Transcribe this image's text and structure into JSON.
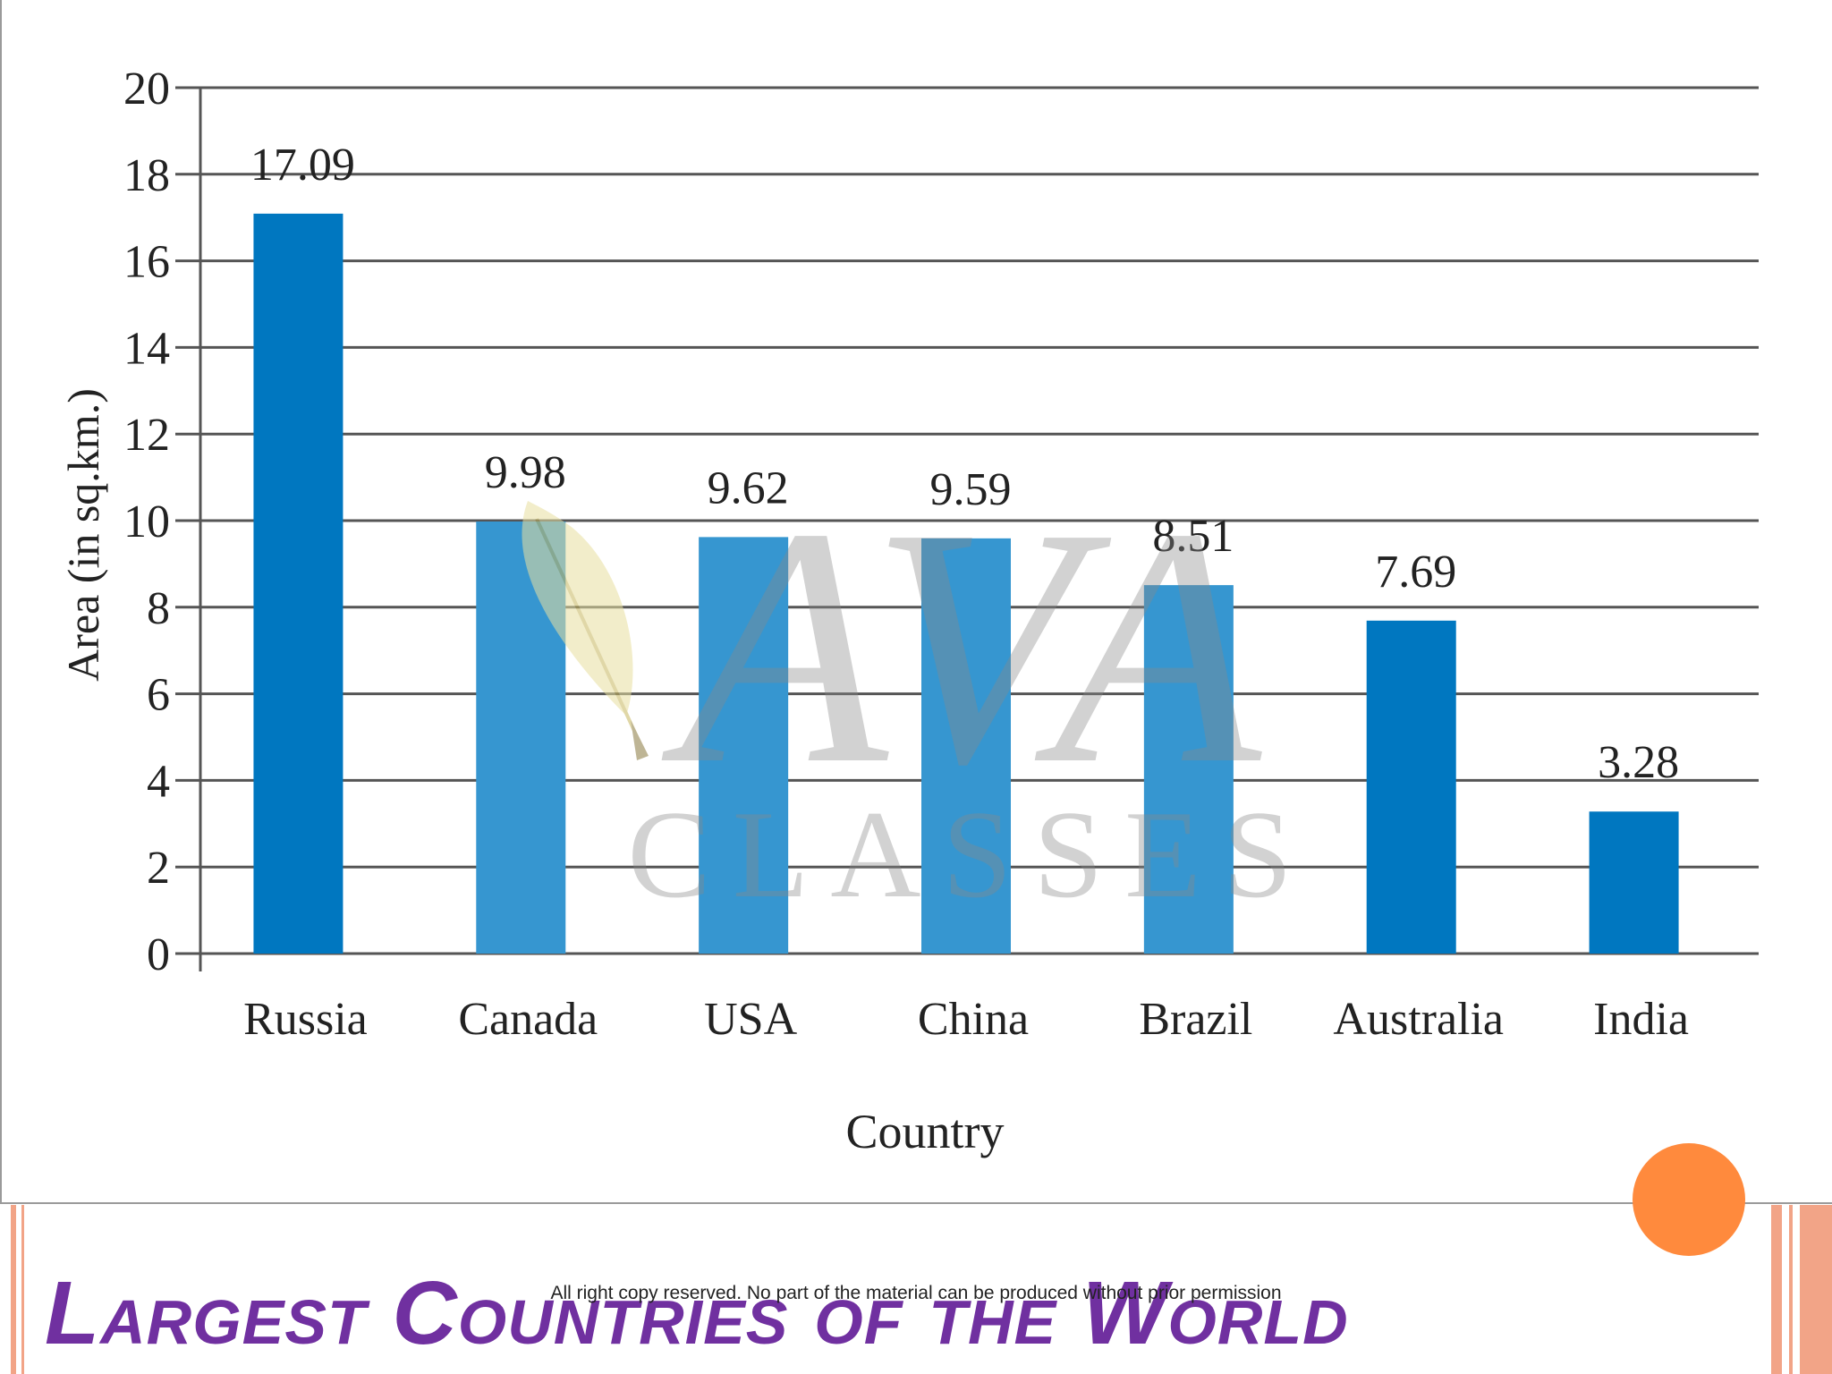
{
  "slide": {
    "title": "Largest Countries of the World",
    "copyright": "All right copy reserved. No part of the material can be produced without prior permission"
  },
  "watermark": {
    "logo_text": "AVA",
    "subtitle_text": "CLASSES"
  },
  "colors": {
    "bar_dark": "#0077c0",
    "bar_light": "#3696d0",
    "title": "#7030a0",
    "accent_orange": "#ff8a3d",
    "stripe": "#f2a487"
  },
  "chart_data": {
    "type": "bar",
    "categories": [
      "Russia",
      "Canada",
      "USA",
      "China",
      "Brazil",
      "Australia",
      "India"
    ],
    "values": [
      17.09,
      9.98,
      9.62,
      9.59,
      8.51,
      7.69,
      3.28
    ],
    "value_labels": [
      "17.09",
      "9.98",
      "9.62",
      "9.59",
      "8.51",
      "7.69",
      "3.28"
    ],
    "xlabel": "Country",
    "ylabel": "Area (in sq.km.)",
    "ylim": [
      0,
      20
    ],
    "yticks": [
      0,
      2,
      4,
      6,
      8,
      10,
      12,
      14,
      16,
      18,
      20
    ],
    "grid": true,
    "legend": "none"
  }
}
